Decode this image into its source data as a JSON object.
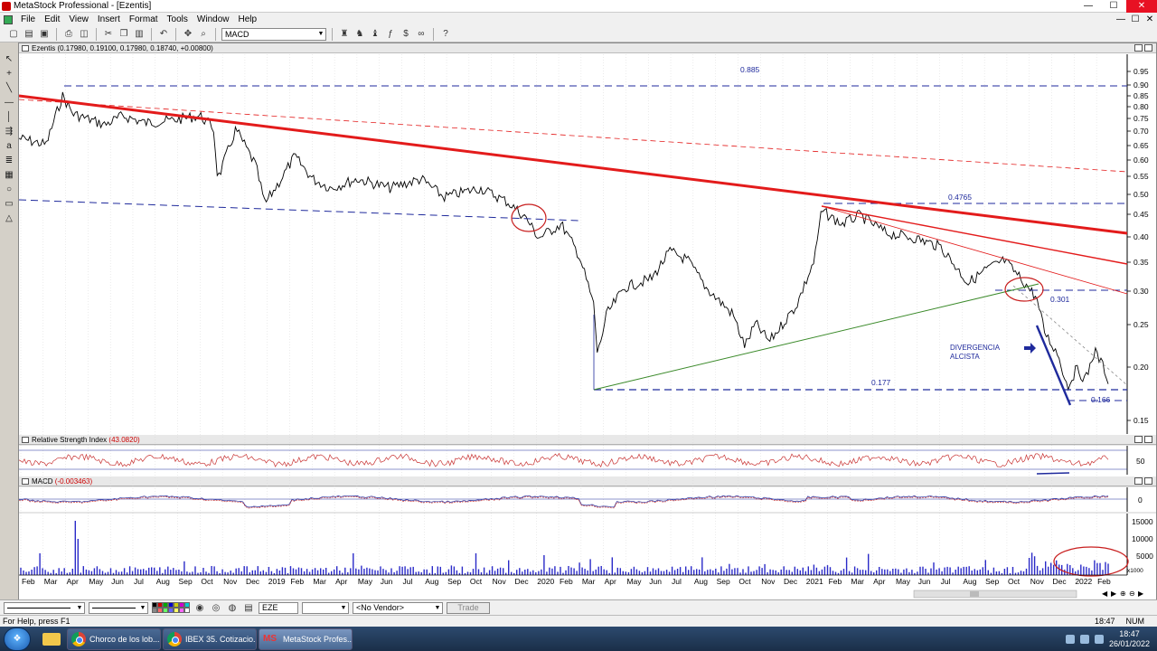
{
  "window": {
    "title": "MetaStock Professional - [Ezentis]",
    "min_glyph": "—",
    "max_glyph": "☐",
    "close_glyph": "✕"
  },
  "menu": [
    "File",
    "Edit",
    "View",
    "Insert",
    "Format",
    "Tools",
    "Window",
    "Help"
  ],
  "toolbar": {
    "indicator_select": "MACD"
  },
  "price_pane": {
    "header": "Ezentis (0.17980, 0.19100, 0.17980, 0.18740, +0.00800)",
    "axis_ticks": [
      "0.95",
      "0.90",
      "0.85",
      "0.80",
      "0.75",
      "0.70",
      "0.65",
      "0.60",
      "0.55",
      "0.50",
      "0.45",
      "0.40",
      "0.35",
      "0.30",
      "0.25",
      "0.20",
      "0.15"
    ],
    "levels": {
      "top": "0.885",
      "mid_high": "0.4765",
      "break": "0.301",
      "low": "0.177",
      "new_low": "0.166"
    },
    "annotation": [
      "DIVERGENCIA",
      "ALCISTA"
    ],
    "colors": {
      "main_trend": "#e31b1b",
      "support": "#1f2a9c",
      "uptrend": "#3b8a2a",
      "price": "#000000"
    }
  },
  "rsi_pane": {
    "header_name": "Relative Strength Index",
    "header_value": "(43.0820)",
    "axis_tick": "50"
  },
  "macd_pane": {
    "header_name": "MACD",
    "header_value": "(-0.003463)",
    "axis_tick": "0"
  },
  "volume_pane": {
    "axis_ticks": [
      "15000",
      "10000",
      "5000"
    ],
    "multiplier": "x1000"
  },
  "xaxis_labels": [
    "Feb",
    "Mar",
    "Apr",
    "May",
    "Jun",
    "Jul",
    "Aug",
    "Sep",
    "Oct",
    "Nov",
    "Dec",
    "2019",
    "Feb",
    "Mar",
    "Apr",
    "May",
    "Jun",
    "Jul",
    "Aug",
    "Sep",
    "Oct",
    "Nov",
    "Dec",
    "2020",
    "Feb",
    "Mar",
    "Apr",
    "May",
    "Jun",
    "Jul",
    "Aug",
    "Sep",
    "Oct",
    "Nov",
    "Dec",
    "2021",
    "Feb",
    "Mar",
    "Apr",
    "May",
    "Jun",
    "Jul",
    "Aug",
    "Sep",
    "Oct",
    "Nov",
    "Dec",
    "2022",
    "Feb"
  ],
  "formatbar": {
    "security": "EZE",
    "vendor": "<No Vendor>",
    "trade": "Trade"
  },
  "status": {
    "help": "For Help, press F1",
    "time": "18:47",
    "num": "NUM"
  },
  "taskbar": {
    "tasks": [
      "Chorco de los lob...",
      "IBEX 35. Cotizacio...",
      "MetaStock Profes..."
    ],
    "clock_time": "18:47",
    "clock_date": "26/01/2022"
  }
}
